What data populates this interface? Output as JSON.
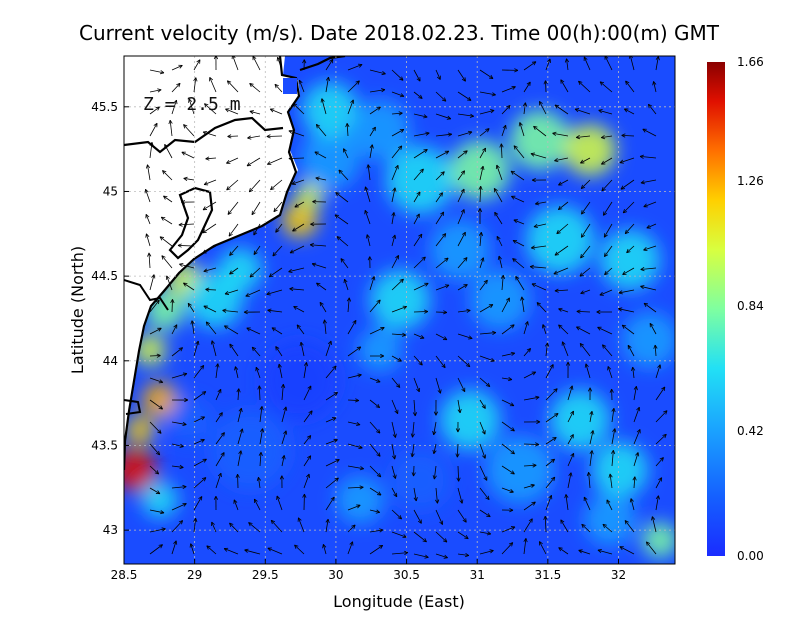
{
  "title": "Current velocity (m/s). Date 2018.02.23. Time 00(h):00(m) GMT",
  "depth_label": "Z = 2.5 m",
  "x_axis": {
    "label": "Longitude (East)",
    "ticks": [
      28.5,
      29,
      29.5,
      30,
      30.5,
      31,
      31.5,
      32
    ],
    "tick_labels": [
      "28.5",
      "29",
      "29.5",
      "30",
      "30.5",
      "31",
      "31.5",
      "32"
    ],
    "range": [
      28.5,
      32.4
    ]
  },
  "y_axis": {
    "label": "Latitude (North)",
    "ticks": [
      43,
      43.5,
      44,
      44.5,
      45,
      45.5
    ],
    "tick_labels": [
      "43",
      "43.5",
      "44",
      "44.5",
      "45",
      "45.5"
    ],
    "range": [
      42.8,
      45.8
    ]
  },
  "colorbar": {
    "min": 0.0,
    "max": 1.66,
    "tick_labels": [
      "0.00",
      "0.42",
      "0.84",
      "1.26",
      "1.66"
    ],
    "colormap": "jet"
  },
  "colors": {
    "land": "#ffffff",
    "coastline": "#000000",
    "grid": "#bdbdbd",
    "arrow": "#000000"
  }
}
